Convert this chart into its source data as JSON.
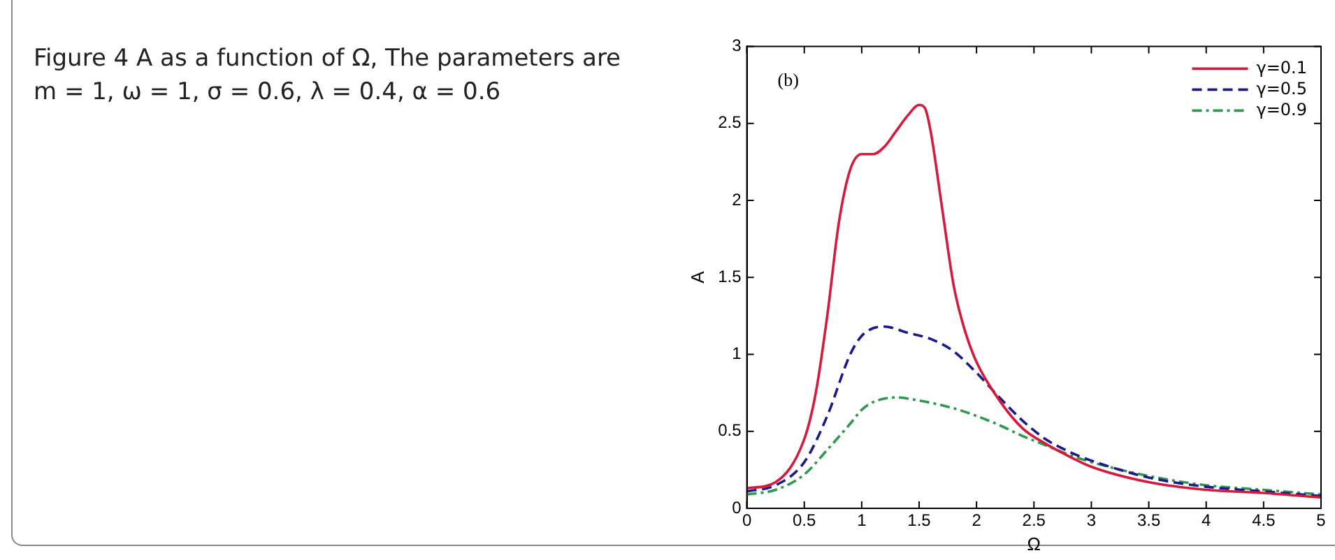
{
  "chart_data": {
    "type": "line",
    "title": "Figure 4  A as a function of Ω, The parameters are m = 1, ω = 1, σ = 0.6, λ = 0.4, α = 0.6",
    "xlabel": "Ω",
    "ylabel": "A",
    "annotations": [
      "(b)"
    ],
    "xlim": [
      0,
      5
    ],
    "xticks": [
      0,
      0.5,
      1,
      1.5,
      2,
      2.5,
      3,
      3.5,
      4,
      4.5,
      5
    ],
    "ylim": [
      0,
      3
    ],
    "yticks": [
      0,
      0.5,
      1,
      1.5,
      2,
      2.5,
      3
    ],
    "grid": false,
    "legend": "top right",
    "marker": "none",
    "series": [
      {
        "name": "γ=0.1",
        "color": "#d7193c",
        "line_style": "solid",
        "x": [
          0,
          0.25,
          0.5,
          0.6,
          0.7,
          0.8,
          0.9,
          1.0,
          1.1,
          1.2,
          1.3,
          1.4,
          1.5,
          1.55,
          1.6,
          1.7,
          1.8,
          1.9,
          2.0,
          2.2,
          2.4,
          2.6,
          2.8,
          3.0,
          3.5,
          4.0,
          4.5,
          5.0
        ],
        "values": [
          0.13,
          0.17,
          0.45,
          0.75,
          1.25,
          1.85,
          2.2,
          2.3,
          2.3,
          2.35,
          2.45,
          2.55,
          2.62,
          2.6,
          2.45,
          1.95,
          1.45,
          1.15,
          0.95,
          0.7,
          0.52,
          0.42,
          0.34,
          0.27,
          0.17,
          0.12,
          0.1,
          0.07
        ]
      },
      {
        "name": "γ=0.5",
        "color": "#1a1a8c",
        "line_style": "dashed",
        "x": [
          0,
          0.25,
          0.5,
          0.7,
          0.9,
          1.0,
          1.1,
          1.2,
          1.4,
          1.6,
          1.8,
          2.0,
          2.2,
          2.4,
          2.6,
          2.8,
          3.0,
          3.5,
          4.0,
          4.5,
          5.0
        ],
        "values": [
          0.11,
          0.15,
          0.3,
          0.6,
          1.0,
          1.12,
          1.17,
          1.18,
          1.14,
          1.1,
          1.02,
          0.88,
          0.72,
          0.57,
          0.45,
          0.37,
          0.31,
          0.2,
          0.14,
          0.11,
          0.08
        ]
      },
      {
        "name": "γ=0.9",
        "color": "#2e9a4e",
        "line_style": "dashdot",
        "x": [
          0,
          0.25,
          0.5,
          0.7,
          0.9,
          1.0,
          1.1,
          1.3,
          1.5,
          1.8,
          2.0,
          2.2,
          2.4,
          2.6,
          2.8,
          3.0,
          3.5,
          4.0,
          4.5,
          5.0
        ],
        "values": [
          0.09,
          0.12,
          0.22,
          0.38,
          0.55,
          0.64,
          0.69,
          0.72,
          0.7,
          0.65,
          0.6,
          0.54,
          0.47,
          0.41,
          0.35,
          0.3,
          0.21,
          0.15,
          0.12,
          0.09
        ]
      }
    ]
  }
}
